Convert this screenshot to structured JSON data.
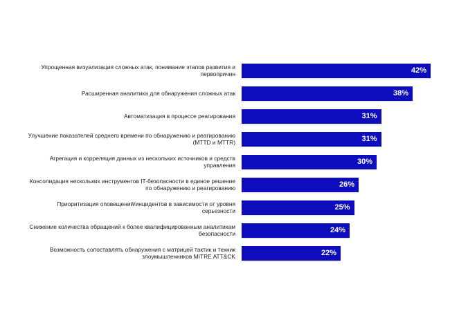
{
  "colors": {
    "bar": "#0d0dbd",
    "label_text": "#1b1b1b",
    "value_text": "#ffffff",
    "background": "#ffffff"
  },
  "chart_data": {
    "type": "bar",
    "orientation": "horizontal",
    "title": "",
    "xlabel": "",
    "ylabel": "",
    "xlim": [
      0,
      42
    ],
    "grid": false,
    "legend": "none",
    "categories": [
      "Упрощенная визуализация сложных атак, понимание этапов развития и первопричин",
      "Расширенная аналитика для обнаружения сложных атак",
      "Автоматизация в процессе реагирования",
      "Улучшение показателей среднего времени по обнаружению и реагированию (MTTD и MTTR)",
      "Агрегация и корреляция данных из нескольких источников и средств управления",
      "Консолидация нескольких инструментов IT-безопасности в единое решение по обнаружению и реагированию",
      "Приоритизация оповещений/инцидентов в зависимости от уровня серьезности",
      "Снижение количества обращений к более квалифицированным аналитикам безопасности",
      "Возможность сопоставлять обнаружения с матрицей тактик и техник злоумышленников MITRE ATT&CK"
    ],
    "values": [
      42,
      38,
      31,
      31,
      30,
      26,
      25,
      24,
      22
    ],
    "value_labels": [
      "42%",
      "38%",
      "31%",
      "31%",
      "30%",
      "26%",
      "25%",
      "24%",
      "22%"
    ]
  }
}
